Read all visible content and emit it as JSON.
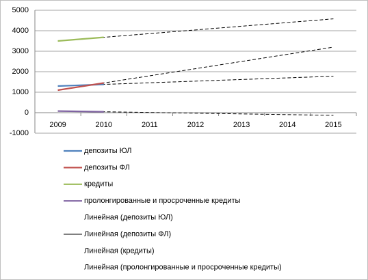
{
  "chart_data": {
    "type": "line",
    "categories": [
      "2009",
      "2010",
      "2011",
      "2012",
      "2013",
      "2014",
      "2015"
    ],
    "series": [
      {
        "name": "депозиты ЮЛ",
        "color": "#4f81bd",
        "values": [
          1300,
          1380,
          null,
          null,
          null,
          null,
          null
        ],
        "trendline": "Линейная (депозиты ЮЛ)"
      },
      {
        "name": "депозиты ФЛ",
        "color": "#c0504d",
        "values": [
          1100,
          1450,
          null,
          null,
          null,
          null,
          null
        ],
        "trendline": "Линейная (депозиты ФЛ)"
      },
      {
        "name": "кредиты",
        "color": "#9bbb59",
        "values": [
          3500,
          3680,
          null,
          null,
          null,
          null,
          null
        ],
        "trendline": "Линейная (кредиты)"
      },
      {
        "name": "пролонгированные и просроченные кредиты",
        "color": "#8064a2",
        "values": [
          80,
          45,
          null,
          null,
          null,
          null,
          null
        ],
        "trendline": "Линейная (пролонгированные и просроченные кредиты)"
      }
    ],
    "ylim": [
      -1000,
      5000
    ],
    "yticks": [
      -1000,
      0,
      1000,
      2000,
      3000,
      4000,
      5000
    ],
    "grid": true,
    "legend": "bottom"
  }
}
